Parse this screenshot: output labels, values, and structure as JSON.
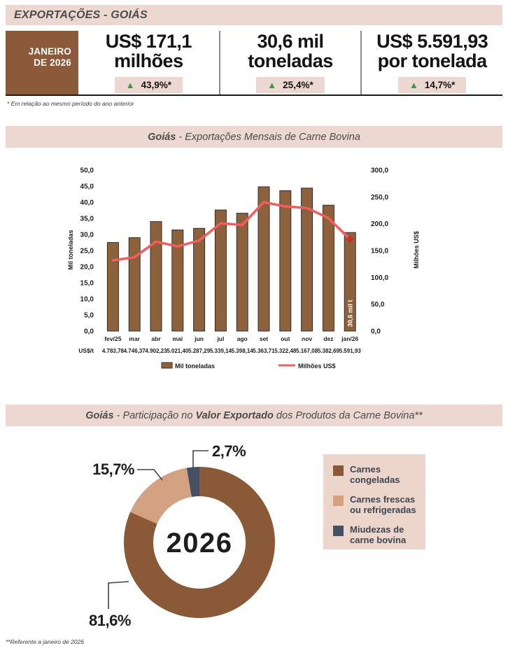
{
  "header": {
    "title": "EXPORTAÇÕES - GOIÁS"
  },
  "period": {
    "line1": "JANEIRO",
    "line2": "DE 2026"
  },
  "stats": [
    {
      "value_line1": "US$ 171,1",
      "value_line2": "milhões",
      "delta": "43,9%*",
      "arrow": "▲"
    },
    {
      "value_line1": "30,6 mil",
      "value_line2": "toneladas",
      "delta": "25,4%*",
      "arrow": "▲"
    },
    {
      "value_line1": "US$ 5.591,93",
      "value_line2": "por tonelada",
      "delta": "14,7%*",
      "arrow": "▲"
    }
  ],
  "footnote_top": "* Em relação ao mesmo período do ano anterior",
  "footnote_bottom": "**Referente a janeiro de 2026",
  "section1": {
    "title_bold": "Goiás",
    "title_rest": " - Exportações Mensais de Carne Bovina"
  },
  "section2": {
    "bold1": "Goiás",
    "mid": " - Participação no ",
    "bold2": "Valor Exportado",
    "rest": " dos Produtos da Carne Bovina**"
  },
  "colors": {
    "pink_bg": "#ecd8d0",
    "brown": "#8a5a3a",
    "bar_brown": "#8e613d",
    "bar_border": "#2e2e2e",
    "line_red": "#f15e5e",
    "marker_red": "#cf2e24",
    "green": "#2f9e3f",
    "tan": "#d2a283",
    "slate": "#474f63",
    "dark_text": "#141414",
    "axis_text": "#1d1d1f"
  },
  "chart_data": [
    {
      "type": "bar",
      "combo": true,
      "title": "Goiás - Exportações Mensais de Carne Bovina",
      "categories": [
        "fev/25",
        "mar",
        "abr",
        "mai",
        "jun",
        "jul",
        "ago",
        "set",
        "out",
        "nov",
        "dez",
        "jan/26"
      ],
      "series": [
        {
          "name": "Mil toneladas",
          "type": "bar",
          "values": [
            27.5,
            29.0,
            34.0,
            31.4,
            31.9,
            37.6,
            36.6,
            44.8,
            43.6,
            44.4,
            39.1,
            30.6
          ]
        },
        {
          "name": "Milhões US$",
          "type": "line",
          "values": [
            131.6,
            137.7,
            166.7,
            157.7,
            168.7,
            200.8,
            197.6,
            240.3,
            232.1,
            229.4,
            210.5,
            171.1
          ]
        }
      ],
      "usd_per_ton_label": "US$/t",
      "usd_per_ton": [
        "4.783,78",
        "4.746,37",
        "4.902,23",
        "5.021,40",
        "5.287,29",
        "5.339,14",
        "5.398,14",
        "5.363,71",
        "5.322,48",
        "5.167,08",
        "5.382,69",
        "5.591,93"
      ],
      "ylabel_left": "Mil toneladas",
      "ylim_left": [
        0,
        50
      ],
      "ystep_left": 5,
      "ylabel_right": "Milhões US$",
      "ylim_right": [
        0,
        300
      ],
      "ystep_right": 50,
      "bar_annotation": {
        "index": 11,
        "text": "30,6 mil t"
      },
      "last_point_marker": "diamond",
      "grid": false,
      "legend_position": "bottom",
      "legend": [
        "Mil toneladas",
        "Milhões US$"
      ]
    },
    {
      "type": "pie",
      "donut": true,
      "title": "Goiás - Participação no Valor Exportado dos Produtos da Carne Bovina**",
      "center_label": "2026",
      "slices": [
        {
          "label": "Carnes congeladas",
          "legend_lines": [
            "Carnes",
            "congeladas"
          ],
          "value": 81.6,
          "display": "81,6%",
          "color": "#8a5a38"
        },
        {
          "label": "Carnes frescas ou refrigeradas",
          "legend_lines": [
            "Carnes frescas",
            "ou refrigeradas"
          ],
          "value": 15.7,
          "display": "15,7%",
          "color": "#d2a283"
        },
        {
          "label": "Miudezas de carne bovina",
          "legend_lines": [
            "Miudezas de",
            "carne bovina"
          ],
          "value": 2.7,
          "display": "2,7%",
          "color": "#474f63"
        }
      ]
    }
  ]
}
